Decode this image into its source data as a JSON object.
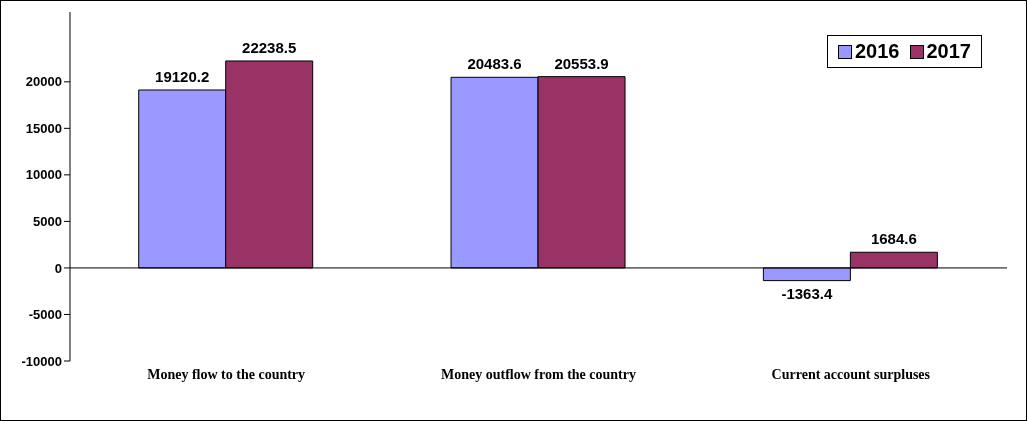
{
  "chart_data": {
    "type": "bar",
    "categories": [
      "Money flow to the country",
      "Money outflow from the country",
      "Current account surpluses"
    ],
    "series": [
      {
        "name": "2016",
        "color": "#9999ff",
        "values": [
          19120.2,
          20483.6,
          -1363.4
        ]
      },
      {
        "name": "2017",
        "color": "#993366",
        "values": [
          22238.5,
          20553.9,
          1684.6
        ]
      }
    ],
    "ylim": [
      -10000,
      27500
    ],
    "yticks": [
      -10000,
      -5000,
      0,
      5000,
      10000,
      15000,
      20000
    ],
    "ref_lines": [
      {
        "axis": "y",
        "value": 0,
        "color": "#000000"
      }
    ],
    "data_labels": true,
    "legend": "top right",
    "grid": false
  }
}
